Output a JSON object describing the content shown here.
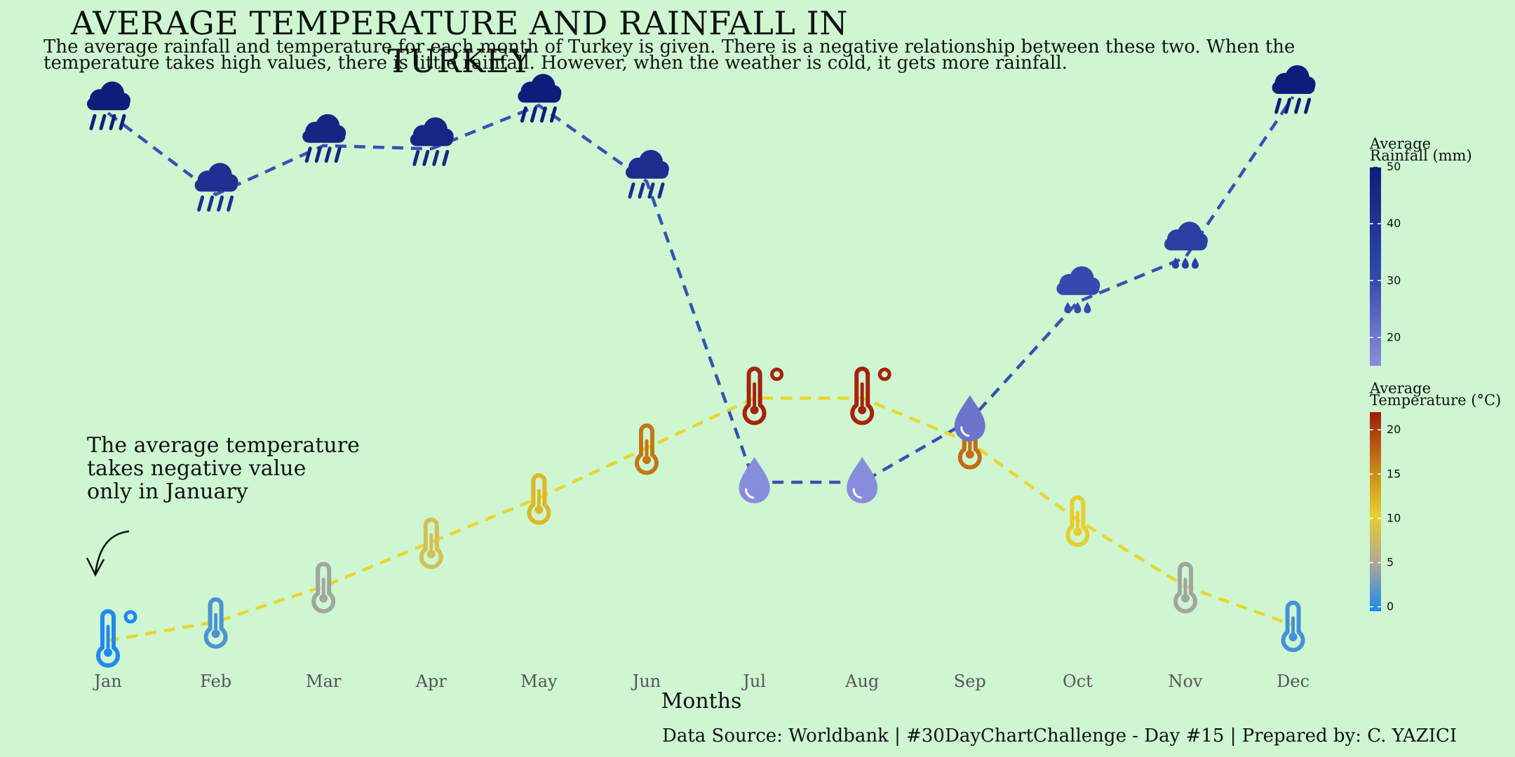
{
  "title": "AVERAGE TEMPERATURE AND RAINFALL IN TURKEY",
  "subtitle": "The average rainfall and temperature for each month of Turkey is given. There is a negative relationship between these two. When the temperature takes high values, there is little rainfall. However, when the weather is cold, it gets more rainfall.",
  "annotation": [
    "The average temperature",
    "takes negative value",
    "only in January"
  ],
  "caption": "Data Source: Worldbank | #30DayChartChallenge - Day #15 | Prepared by: C. YAZICI",
  "colors": {
    "background": "#cdf6d1",
    "rain_line": "#3a4fb0",
    "temp_line": "#e9d62e",
    "rain_scale": [
      "#8a8fdc",
      "#3347ad",
      "#0d1d7a"
    ],
    "temp_scale": [
      "#1e88f0",
      "#b0aa94",
      "#e8cf2e",
      "#c98317",
      "#a01a08"
    ]
  },
  "chart_data": {
    "type": "line",
    "xlabel": "Months",
    "ylabel": "",
    "categories": [
      "Jan",
      "Feb",
      "Mar",
      "Apr",
      "May",
      "Jun",
      "Jul",
      "Aug",
      "Sep",
      "Oct",
      "Nov",
      "Dec"
    ],
    "series": [
      {
        "name": "Average Rainfall (mm)",
        "values": [
          49.5,
          42.0,
          46.5,
          46.2,
          50.2,
          43.2,
          15.5,
          15.5,
          21.2,
          32.1,
          36.2,
          51.0
        ],
        "icons": [
          "cloud-rain-icon",
          "cloud-rain-icon",
          "cloud-rain-icon",
          "cloud-rain-icon",
          "cloud-rain-icon",
          "cloud-rain-icon",
          "droplet-icon",
          "droplet-icon",
          "droplet-icon",
          "cloud-drizzle-icon",
          "cloud-drizzle-icon",
          "cloud-rain-icon"
        ]
      },
      {
        "name": "Average Temperature (°C)",
        "values": [
          -0.4,
          1.3,
          4.5,
          8.5,
          12.5,
          17.0,
          21.5,
          21.5,
          17.5,
          10.5,
          4.5,
          1.0
        ],
        "icons": [
          "temperature-low-icon",
          "thermometer-icon",
          "thermometer-icon",
          "thermometer-icon",
          "thermometer-icon",
          "thermometer-icon",
          "temperature-high-icon",
          "temperature-high-icon",
          "thermometer-icon",
          "thermometer-icon",
          "thermometer-icon",
          "thermometer-icon"
        ]
      }
    ],
    "legends": [
      {
        "title": [
          "Average",
          "Rainfall (mm)"
        ],
        "ticks": [
          50,
          40,
          30,
          20
        ],
        "range": [
          15,
          50
        ],
        "placement": "right-top"
      },
      {
        "title": [
          "Average",
          "Temperature (°C)"
        ],
        "ticks": [
          20,
          15,
          10,
          5,
          0
        ],
        "range": [
          -0.5,
          22
        ],
        "placement": "right-bottom"
      }
    ],
    "grid": false
  }
}
